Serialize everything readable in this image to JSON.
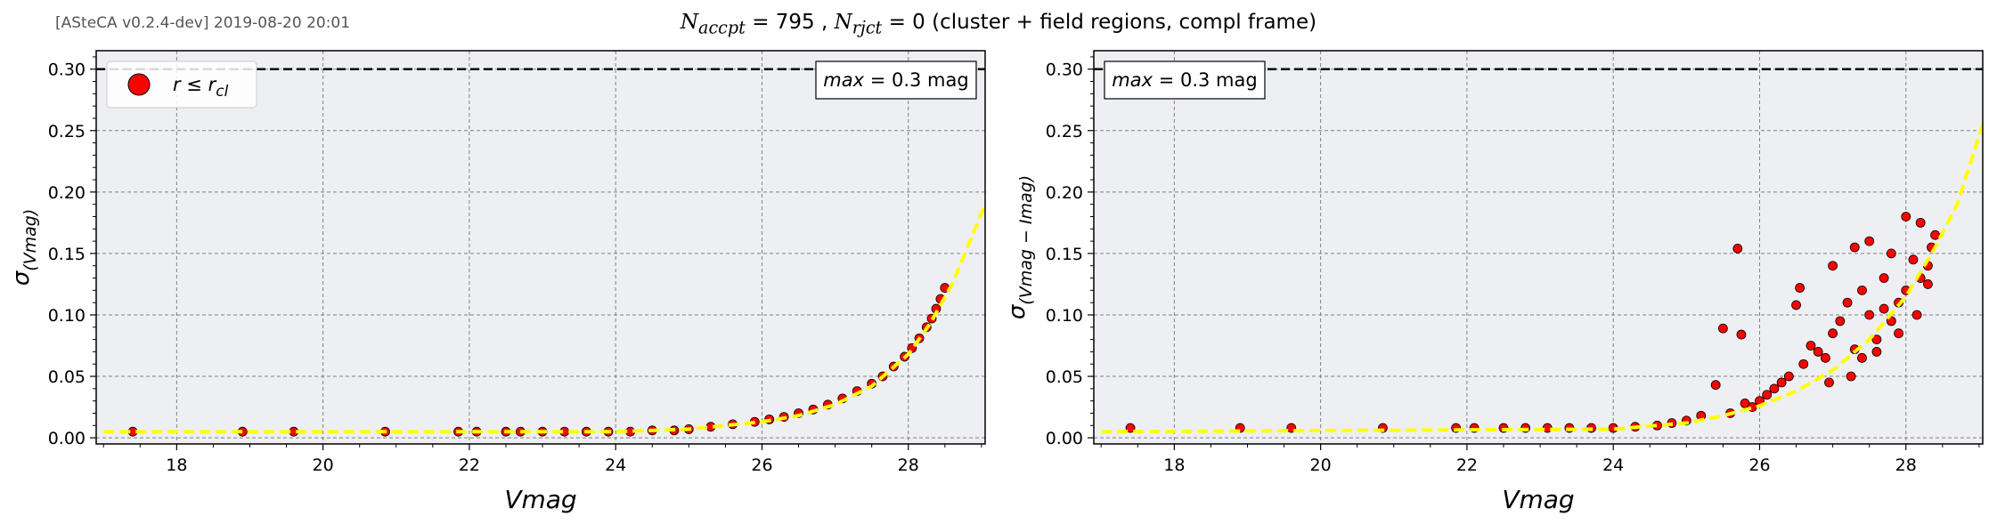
{
  "header": {
    "stamp": "[ASteCA v0.2.4-dev] 2019-08-20 20:01",
    "title_n_accpt_symbol": "N",
    "title_n_accpt_sub": "accpt",
    "title_n_accpt_value": "= 795 ,",
    "title_n_rjct_symbol": "N",
    "title_n_rjct_sub": "rjct",
    "title_n_rjct_value": "= 0",
    "title_rest": "(cluster + field regions, compl frame)"
  },
  "colors": {
    "axes_bg": "#eeeff2",
    "points": "#ff0000",
    "point_edge": "#000000",
    "fit_curve": "#ffff00",
    "max_line": "#000000"
  },
  "chart_data": [
    {
      "type": "scatter",
      "xlabel": "Vmag",
      "ylabel": "σ(Vmag)",
      "xlim": [
        16.9,
        29.05
      ],
      "ylim": [
        -0.005,
        0.315
      ],
      "xticks": [
        "18",
        "20",
        "22",
        "24",
        "26",
        "28"
      ],
      "yticks": [
        "0.00",
        "0.05",
        "0.10",
        "0.15",
        "0.20",
        "0.25",
        "0.30"
      ],
      "grid": true,
      "max_line": 0.3,
      "max_box": "max = 0.3 mag",
      "legend": {
        "label": "r ≤ r_cl",
        "position": "top-left"
      },
      "fit_curve": {
        "style": "dashed",
        "points": [
          [
            17.0,
            0.005
          ],
          [
            24.0,
            0.005
          ],
          [
            25.0,
            0.007
          ],
          [
            26.0,
            0.013
          ],
          [
            26.5,
            0.018
          ],
          [
            27.0,
            0.027
          ],
          [
            27.5,
            0.042
          ],
          [
            28.0,
            0.068
          ],
          [
            28.3,
            0.093
          ],
          [
            28.6,
            0.125
          ],
          [
            29.05,
            0.19
          ]
        ]
      },
      "series": [
        {
          "x": [
            17.4,
            18.9,
            19.6,
            20.85,
            21.85,
            22.1,
            22.5,
            22.7,
            23.0,
            23.3,
            23.6,
            23.9,
            24.2,
            24.5,
            24.8,
            25.0,
            25.3,
            25.6,
            25.9,
            26.1,
            26.3,
            26.5,
            26.7,
            26.9,
            27.1,
            27.3,
            27.5,
            27.65,
            27.8,
            27.95,
            28.05,
            28.15,
            28.25,
            28.32,
            28.38,
            28.44,
            28.5
          ],
          "y": [
            0.005,
            0.005,
            0.005,
            0.005,
            0.005,
            0.005,
            0.005,
            0.005,
            0.005,
            0.005,
            0.005,
            0.005,
            0.005,
            0.006,
            0.006,
            0.007,
            0.009,
            0.011,
            0.013,
            0.015,
            0.017,
            0.02,
            0.023,
            0.027,
            0.032,
            0.038,
            0.044,
            0.05,
            0.058,
            0.066,
            0.073,
            0.081,
            0.09,
            0.097,
            0.105,
            0.113,
            0.122
          ]
        }
      ]
    },
    {
      "type": "scatter",
      "xlabel": "Vmag",
      "ylabel": "σ(Vmag − Imag)",
      "xlim": [
        16.9,
        29.05
      ],
      "ylim": [
        -0.005,
        0.315
      ],
      "xticks": [
        "18",
        "20",
        "22",
        "24",
        "26",
        "28"
      ],
      "yticks": [
        "0.00",
        "0.05",
        "0.10",
        "0.15",
        "0.20",
        "0.25",
        "0.30"
      ],
      "grid": true,
      "max_line": 0.3,
      "max_box": "max = 0.3 mag",
      "fit_curve": {
        "style": "dashed",
        "points": [
          [
            17.0,
            0.005
          ],
          [
            24.0,
            0.007
          ],
          [
            25.0,
            0.012
          ],
          [
            25.5,
            0.018
          ],
          [
            26.0,
            0.026
          ],
          [
            26.5,
            0.038
          ],
          [
            27.0,
            0.055
          ],
          [
            27.5,
            0.08
          ],
          [
            28.0,
            0.115
          ],
          [
            28.4,
            0.155
          ],
          [
            28.7,
            0.19
          ],
          [
            29.05,
            0.255
          ]
        ]
      },
      "series": [
        {
          "x": [
            17.4,
            18.9,
            19.6,
            20.85,
            21.85,
            22.1,
            22.5,
            22.8,
            23.1,
            23.4,
            23.7,
            24.0,
            24.3,
            24.6,
            24.8,
            25.0,
            25.2,
            25.4,
            25.5,
            25.6,
            25.7,
            25.75,
            25.8,
            25.9,
            26.0,
            26.1,
            26.2,
            26.3,
            26.4,
            26.5,
            26.55,
            26.6,
            26.7,
            26.8,
            26.9,
            27.0,
            27.0,
            27.1,
            27.2,
            27.3,
            27.3,
            27.4,
            27.5,
            27.5,
            27.6,
            27.7,
            27.8,
            27.8,
            27.9,
            28.0,
            28.0,
            28.1,
            28.2,
            28.2,
            28.3,
            28.35,
            28.4,
            27.25,
            27.6,
            27.9,
            28.15,
            27.7,
            28.3,
            26.95,
            27.4
          ],
          "y": [
            0.008,
            0.008,
            0.008,
            0.008,
            0.008,
            0.008,
            0.008,
            0.008,
            0.008,
            0.008,
            0.008,
            0.008,
            0.009,
            0.01,
            0.012,
            0.014,
            0.018,
            0.043,
            0.089,
            0.02,
            0.154,
            0.084,
            0.028,
            0.025,
            0.03,
            0.035,
            0.04,
            0.045,
            0.05,
            0.108,
            0.122,
            0.06,
            0.075,
            0.07,
            0.065,
            0.14,
            0.085,
            0.095,
            0.11,
            0.155,
            0.072,
            0.12,
            0.1,
            0.16,
            0.08,
            0.13,
            0.15,
            0.095,
            0.11,
            0.18,
            0.12,
            0.145,
            0.13,
            0.175,
            0.14,
            0.155,
            0.165,
            0.05,
            0.07,
            0.085,
            0.1,
            0.105,
            0.125,
            0.045,
            0.065
          ]
        }
      ]
    }
  ]
}
